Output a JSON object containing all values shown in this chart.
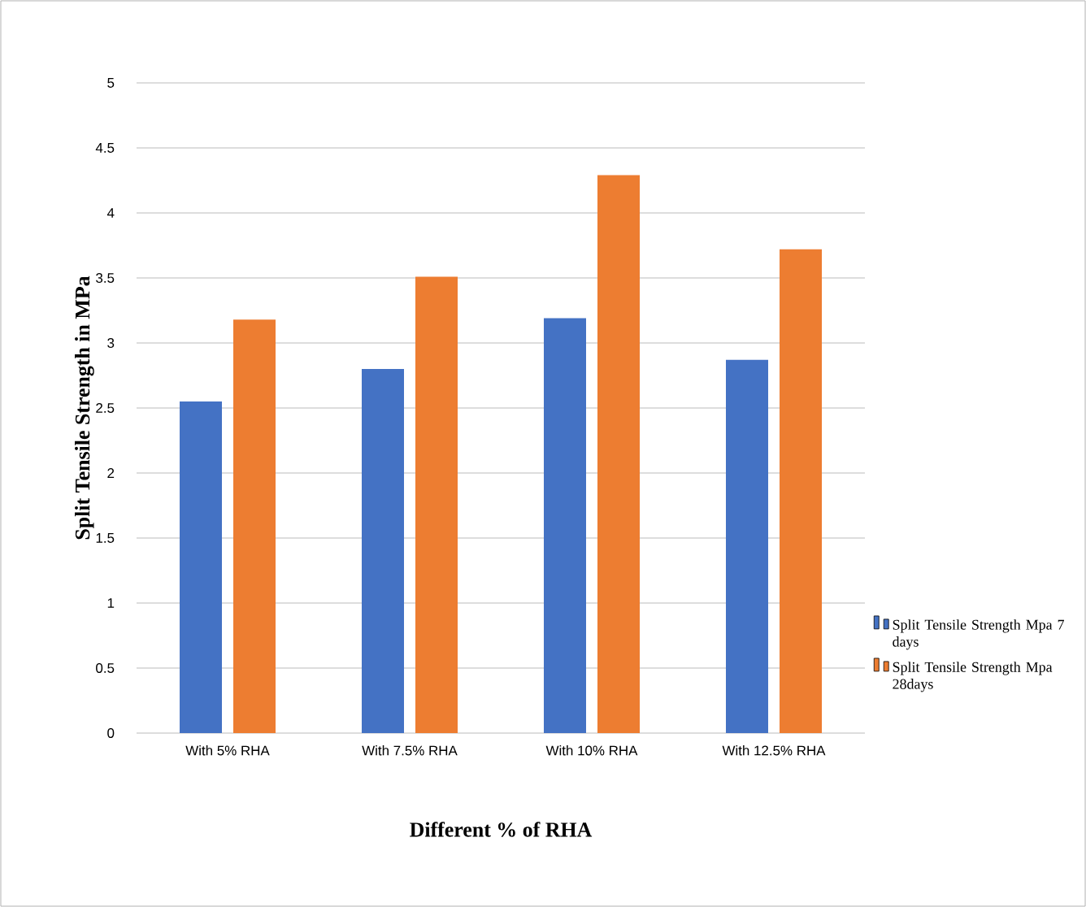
{
  "chart_data": {
    "type": "bar",
    "xlabel": "Different % of RHA",
    "ylabel": "Split Tensile Strength in MPa",
    "categories": [
      "With 5% RHA",
      "With 7.5% RHA",
      "With 10% RHA",
      "With 12.5% RHA"
    ],
    "series": [
      {
        "name": "Split Tensile Strength Mpa 7 days",
        "color": "#4472c4",
        "values": [
          2.55,
          2.8,
          3.19,
          2.87
        ]
      },
      {
        "name": "Split Tensile Strength Mpa 28days",
        "color": "#ed7d31",
        "values": [
          3.18,
          3.51,
          4.29,
          3.72
        ]
      }
    ],
    "ylim": [
      0,
      5
    ],
    "yticks": [
      0,
      0.5,
      1,
      1.5,
      2,
      2.5,
      3,
      3.5,
      4,
      4.5,
      5
    ],
    "grid": "y",
    "legend": "right"
  }
}
